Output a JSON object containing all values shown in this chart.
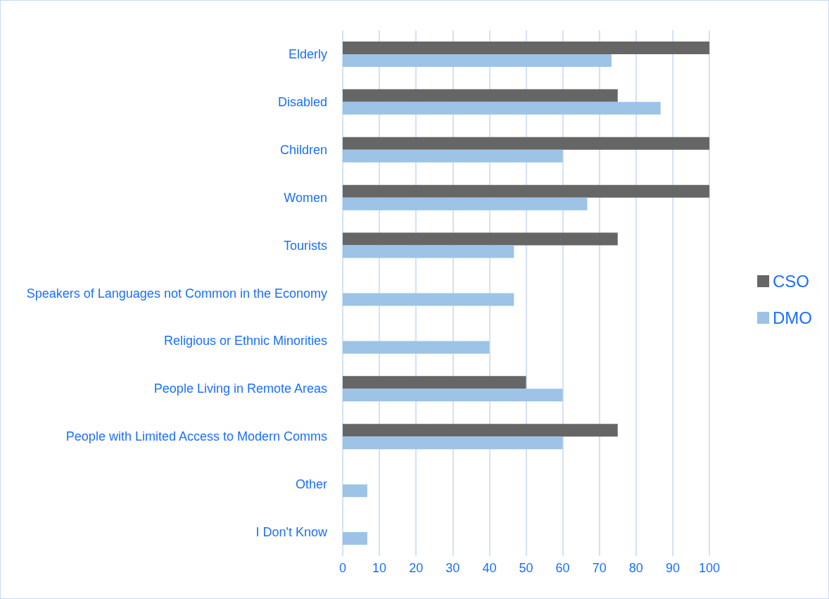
{
  "chart_data": {
    "type": "bar",
    "orientation": "horizontal",
    "categories": [
      "Elderly",
      "Disabled",
      "Children",
      "Women",
      "Tourists",
      "Speakers of Languages not Common in the Economy",
      "Religious or Ethnic Minorities",
      "People Living in Remote Areas",
      "People with Limited Access to Modern Comms",
      "Other",
      "I Don't Know"
    ],
    "series": [
      {
        "name": "CSO",
        "color": "#666666",
        "values": [
          100,
          75,
          100,
          100,
          75,
          null,
          null,
          50,
          75,
          null,
          null
        ]
      },
      {
        "name": "DMO",
        "color": "#9dc3e6",
        "values": [
          73.3,
          86.7,
          60,
          66.7,
          46.7,
          46.7,
          40,
          60,
          60,
          6.7,
          6.7
        ]
      }
    ],
    "xlim": [
      0,
      100
    ],
    "xticks": [
      0,
      10,
      20,
      30,
      40,
      50,
      60,
      70,
      80,
      90,
      100
    ],
    "grid": "x",
    "legend": "right"
  }
}
